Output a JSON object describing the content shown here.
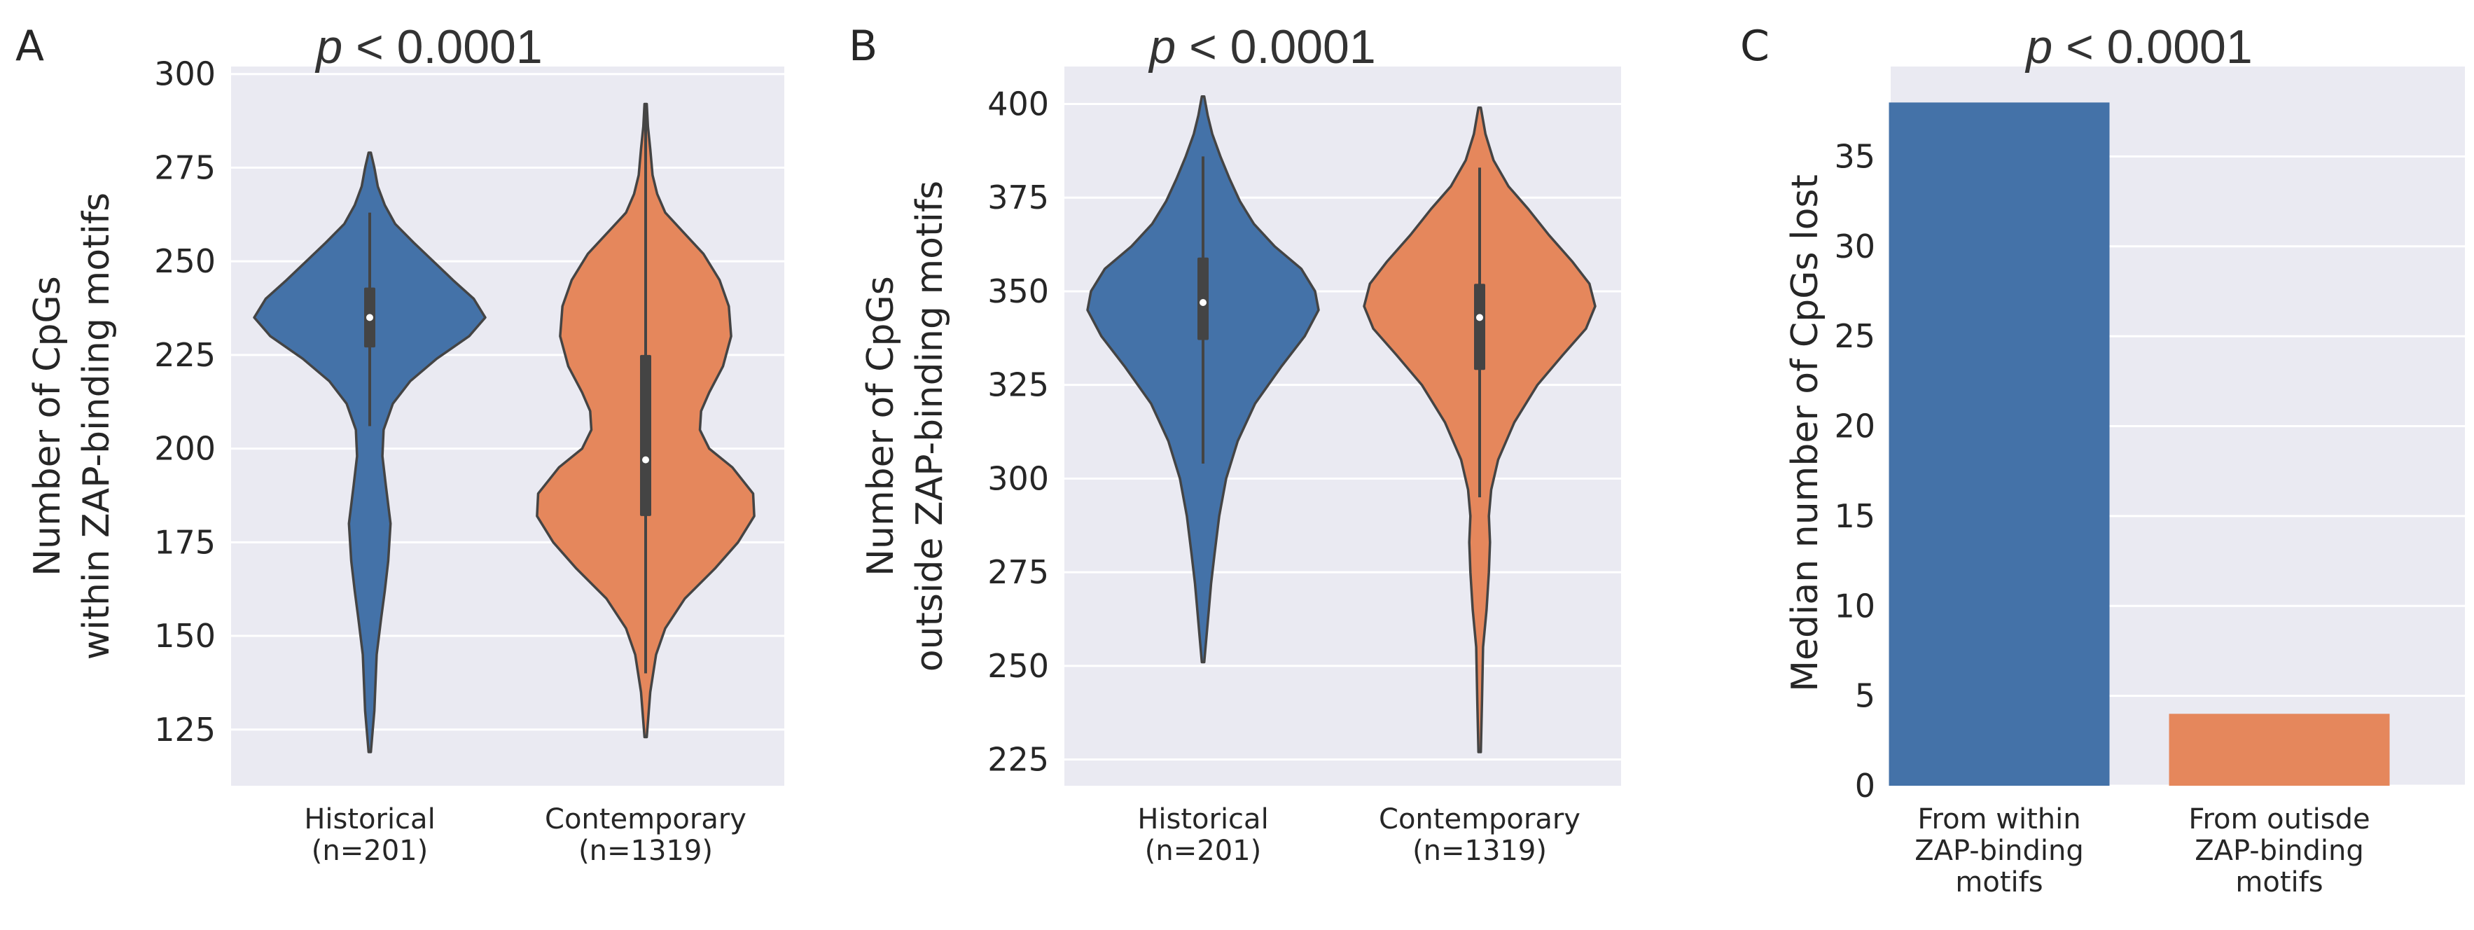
{
  "colors": {
    "historical": "#4472a8",
    "contemporary": "#e5875c",
    "plot_bg": "#eaeaf2",
    "grid": "#ffffff",
    "outline": "#444444"
  },
  "chart_data": [
    {
      "panel": "A",
      "type": "violin",
      "p_label": "p",
      "p_value": "< 0.0001",
      "ylabel_lines": [
        "Number of CpGs",
        "within ZAP-binding motifs"
      ],
      "ylim": [
        110,
        302
      ],
      "yticks": [
        125,
        150,
        175,
        200,
        225,
        250,
        275,
        300
      ],
      "categories": [
        {
          "label_lines": [
            "Historical",
            "(n=201)"
          ],
          "color_key": "historical",
          "median": 235,
          "q1": 227,
          "q3": 243,
          "whisker_low": 206,
          "whisker_high": 263,
          "density": [
            [
              119,
              0.01
            ],
            [
              130,
              0.04
            ],
            [
              145,
              0.06
            ],
            [
              155,
              0.1
            ],
            [
              162,
              0.13
            ],
            [
              170,
              0.16
            ],
            [
              180,
              0.18
            ],
            [
              190,
              0.14
            ],
            [
              198,
              0.11
            ],
            [
              205,
              0.12
            ],
            [
              212,
              0.2
            ],
            [
              218,
              0.35
            ],
            [
              224,
              0.58
            ],
            [
              230,
              0.86
            ],
            [
              235,
              1.0
            ],
            [
              240,
              0.9
            ],
            [
              245,
              0.72
            ],
            [
              250,
              0.55
            ],
            [
              255,
              0.38
            ],
            [
              260,
              0.22
            ],
            [
              265,
              0.13
            ],
            [
              270,
              0.07
            ],
            [
              275,
              0.04
            ],
            [
              279,
              0.01
            ]
          ]
        },
        {
          "label_lines": [
            "Contemporary",
            "(n=1319)"
          ],
          "color_key": "contemporary",
          "median": 197,
          "q1": 182,
          "q3": 225,
          "whisker_low": 140,
          "whisker_high": 292,
          "density": [
            [
              123,
              0.01
            ],
            [
              135,
              0.04
            ],
            [
              145,
              0.09
            ],
            [
              152,
              0.17
            ],
            [
              160,
              0.34
            ],
            [
              168,
              0.6
            ],
            [
              175,
              0.8
            ],
            [
              182,
              0.94
            ],
            [
              188,
              0.93
            ],
            [
              195,
              0.75
            ],
            [
              200,
              0.55
            ],
            [
              205,
              0.47
            ],
            [
              210,
              0.48
            ],
            [
              215,
              0.55
            ],
            [
              222,
              0.67
            ],
            [
              230,
              0.74
            ],
            [
              238,
              0.72
            ],
            [
              245,
              0.64
            ],
            [
              252,
              0.5
            ],
            [
              258,
              0.32
            ],
            [
              263,
              0.17
            ],
            [
              268,
              0.1
            ],
            [
              273,
              0.06
            ],
            [
              280,
              0.04
            ],
            [
              286,
              0.02
            ],
            [
              292,
              0.01
            ]
          ]
        }
      ]
    },
    {
      "panel": "B",
      "type": "violin",
      "p_label": "p",
      "p_value": "< 0.0001",
      "ylabel_lines": [
        "Number of CpGs",
        "outside ZAP-binding motifs"
      ],
      "ylim": [
        218,
        410
      ],
      "yticks": [
        225,
        250,
        275,
        300,
        325,
        350,
        375,
        400
      ],
      "categories": [
        {
          "label_lines": [
            "Historical",
            "(n=201)"
          ],
          "color_key": "historical",
          "median": 347,
          "q1": 337,
          "q3": 359,
          "whisker_low": 304,
          "whisker_high": 386,
          "density": [
            [
              251,
              0.01
            ],
            [
              258,
              0.03
            ],
            [
              265,
              0.05
            ],
            [
              272,
              0.07
            ],
            [
              280,
              0.1
            ],
            [
              290,
              0.14
            ],
            [
              300,
              0.2
            ],
            [
              310,
              0.3
            ],
            [
              320,
              0.45
            ],
            [
              330,
              0.68
            ],
            [
              338,
              0.88
            ],
            [
              345,
              1.0
            ],
            [
              350,
              0.97
            ],
            [
              356,
              0.85
            ],
            [
              362,
              0.62
            ],
            [
              368,
              0.44
            ],
            [
              374,
              0.32
            ],
            [
              380,
              0.23
            ],
            [
              386,
              0.15
            ],
            [
              392,
              0.08
            ],
            [
              397,
              0.04
            ],
            [
              402,
              0.01
            ]
          ]
        },
        {
          "label_lines": [
            "Contemporary",
            "(n=1319)"
          ],
          "color_key": "contemporary",
          "median": 343,
          "q1": 329,
          "q3": 352,
          "whisker_low": 295,
          "whisker_high": 383,
          "density": [
            [
              227,
              0.01
            ],
            [
              240,
              0.02
            ],
            [
              255,
              0.03
            ],
            [
              265,
              0.06
            ],
            [
              275,
              0.08
            ],
            [
              283,
              0.09
            ],
            [
              290,
              0.08
            ],
            [
              297,
              0.1
            ],
            [
              305,
              0.16
            ],
            [
              315,
              0.3
            ],
            [
              325,
              0.5
            ],
            [
              333,
              0.72
            ],
            [
              340,
              0.92
            ],
            [
              346,
              1.0
            ],
            [
              352,
              0.95
            ],
            [
              358,
              0.8
            ],
            [
              365,
              0.6
            ],
            [
              372,
              0.42
            ],
            [
              378,
              0.25
            ],
            [
              385,
              0.12
            ],
            [
              392,
              0.05
            ],
            [
              399,
              0.01
            ]
          ]
        }
      ]
    },
    {
      "panel": "C",
      "type": "bar",
      "p_label": "p",
      "p_value": "< 0.0001",
      "ylabel_lines": [
        "Median number of CpGs lost"
      ],
      "ylim": [
        0,
        40
      ],
      "yticks": [
        0,
        5,
        10,
        15,
        20,
        25,
        30,
        35
      ],
      "categories": [
        {
          "label_lines": [
            "From within",
            "ZAP-binding",
            "motifs"
          ],
          "color_key": "historical",
          "value": 38
        },
        {
          "label_lines": [
            "From outisde",
            "ZAP-binding",
            "motifs"
          ],
          "color_key": "contemporary",
          "value": 4
        }
      ]
    }
  ]
}
